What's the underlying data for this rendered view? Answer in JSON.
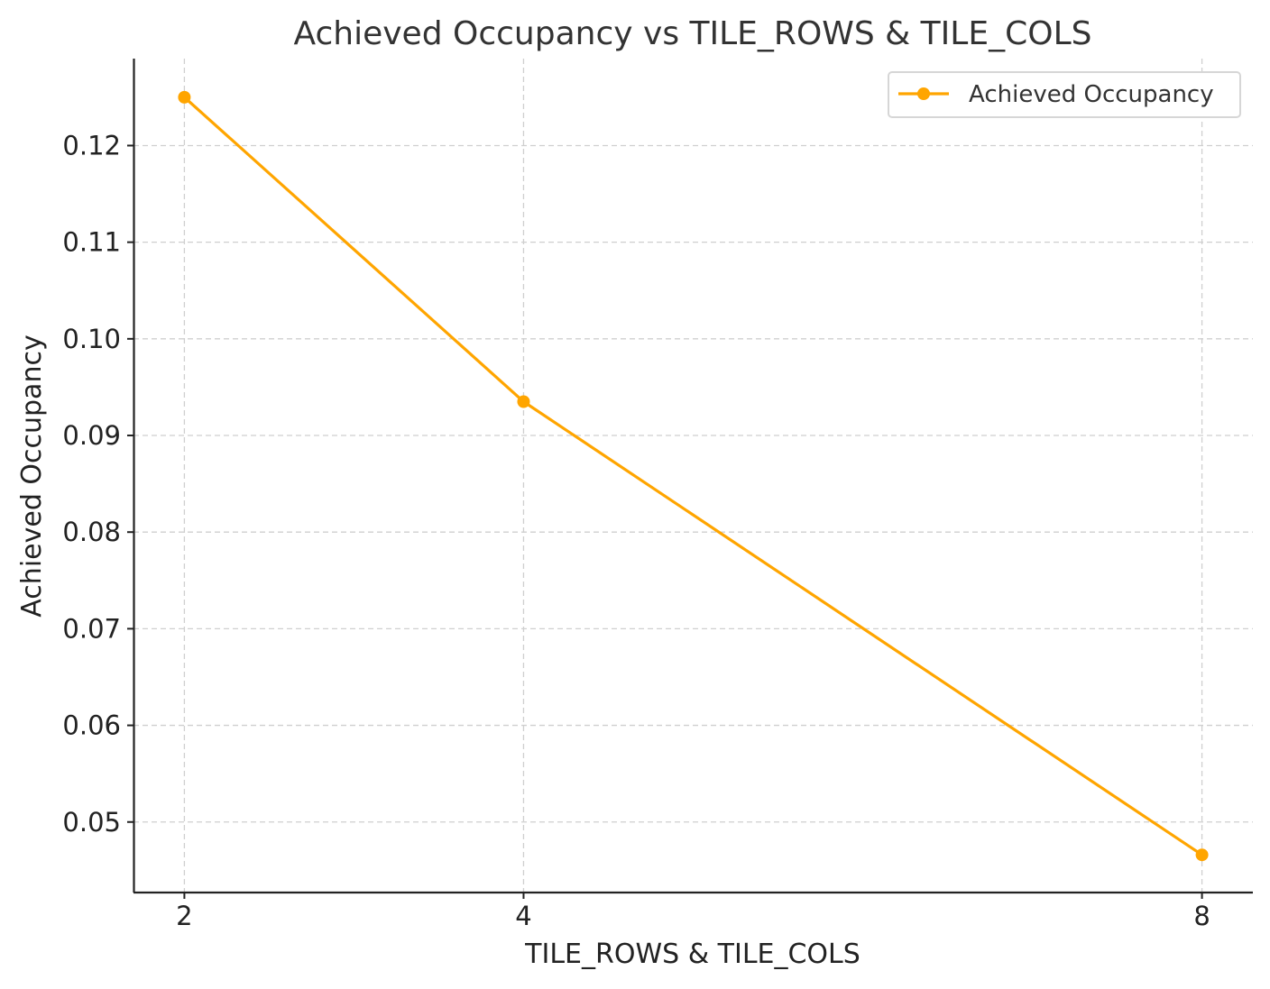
{
  "chart_data": {
    "type": "line",
    "title": "Achieved Occupancy vs TILE_ROWS & TILE_COLS",
    "xlabel": "TILE_ROWS & TILE_COLS",
    "ylabel": "Achieved Occupancy",
    "x": [
      2,
      4,
      8
    ],
    "x_tick_labels": [
      "2",
      "4",
      "8"
    ],
    "y_ticks": [
      0.05,
      0.06,
      0.07,
      0.08,
      0.09,
      0.1,
      0.11,
      0.12
    ],
    "y_tick_labels": [
      "0.05",
      "0.06",
      "0.07",
      "0.08",
      "0.09",
      "0.10",
      "0.11",
      "0.12"
    ],
    "xlim": [
      1.7,
      8.3
    ],
    "ylim": [
      0.0427,
      0.129
    ],
    "grid": true,
    "legend_position": "top-right",
    "series": [
      {
        "name": "Achieved Occupancy",
        "color": "#FFA500",
        "marker": "circle",
        "values": [
          0.125,
          0.0935,
          0.0466
        ]
      }
    ]
  }
}
